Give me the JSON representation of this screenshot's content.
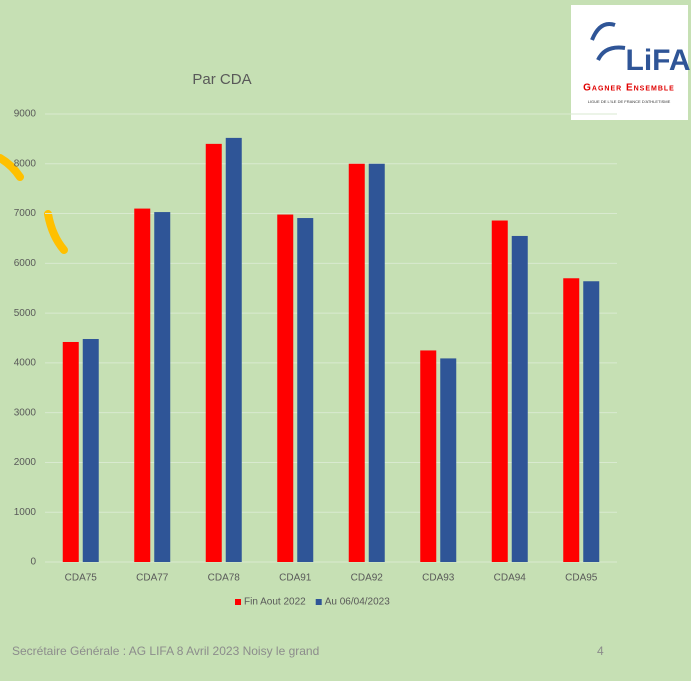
{
  "chart_data": {
    "type": "bar",
    "title": "Par CDA",
    "categories": [
      "CDA75",
      "CDA77",
      "CDA78",
      "CDA91",
      "CDA92",
      "CDA93",
      "CDA94",
      "CDA95"
    ],
    "series": [
      {
        "name": "Fin Aout 2022",
        "color": "#ff0000",
        "values": [
          4420,
          7100,
          8400,
          6980,
          8000,
          4250,
          6860,
          5700
        ]
      },
      {
        "name": "Au 06/04/2023",
        "color": "#2f5597",
        "values": [
          4480,
          7030,
          8520,
          6910,
          8000,
          4090,
          6550,
          5640
        ]
      }
    ],
    "ylim": [
      0,
      9000
    ],
    "yticks": [
      0,
      1000,
      2000,
      3000,
      4000,
      5000,
      6000,
      7000,
      8000,
      9000
    ],
    "grid": true,
    "legend": "bottom"
  },
  "footer": {
    "text": "Secrétaire Générale : AG LIFA 8   Avril 2023 Noisy le grand",
    "page": "4"
  },
  "logo": {
    "name": "LiFA",
    "tagline": "Gagner Ensemble",
    "subtitle": "LIGUE DE L'ILE DE FRANCE D'ATHLETISME"
  }
}
